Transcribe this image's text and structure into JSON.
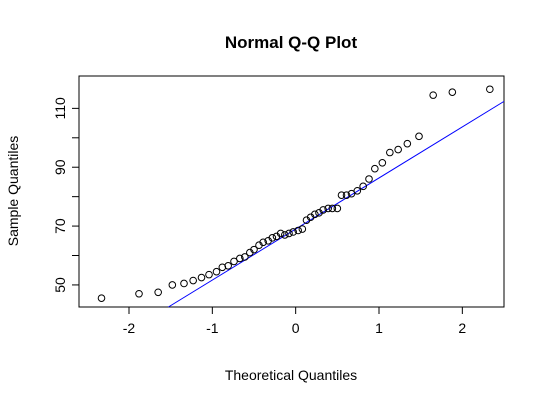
{
  "chart_data": {
    "type": "scatter",
    "title": "Normal Q-Q Plot",
    "xlabel": "Theoretical Quantiles",
    "ylabel": "Sample Quantiles",
    "xlim": [
      -2.6,
      2.5
    ],
    "ylim": [
      42.5,
      121
    ],
    "x_ticks": [
      -2,
      -1,
      0,
      1,
      2
    ],
    "x_tick_labels": [
      "-2",
      "-1",
      "0",
      "1",
      "2"
    ],
    "y_ticks": [
      50,
      60,
      70,
      80,
      90,
      100,
      110
    ],
    "y_tick_labels": [
      "50",
      "",
      "70",
      "",
      "90",
      "",
      "110"
    ],
    "grid": false,
    "point_color": "#000000",
    "line_color": "#0000ff",
    "reference_line": {
      "intercept": 69.0,
      "slope": 17.35
    },
    "points": [
      {
        "x": -2.33,
        "y": 45.5
      },
      {
        "x": -1.88,
        "y": 47.0
      },
      {
        "x": -1.65,
        "y": 47.5
      },
      {
        "x": -1.48,
        "y": 50.0
      },
      {
        "x": -1.34,
        "y": 50.5
      },
      {
        "x": -1.23,
        "y": 51.5
      },
      {
        "x": -1.13,
        "y": 52.5
      },
      {
        "x": -1.04,
        "y": 53.5
      },
      {
        "x": -0.95,
        "y": 54.5
      },
      {
        "x": -0.88,
        "y": 56.0
      },
      {
        "x": -0.81,
        "y": 56.5
      },
      {
        "x": -0.74,
        "y": 58.0
      },
      {
        "x": -0.67,
        "y": 59.0
      },
      {
        "x": -0.61,
        "y": 59.5
      },
      {
        "x": -0.55,
        "y": 61.0
      },
      {
        "x": -0.5,
        "y": 62.0
      },
      {
        "x": -0.44,
        "y": 63.5
      },
      {
        "x": -0.39,
        "y": 64.5
      },
      {
        "x": -0.33,
        "y": 65.0
      },
      {
        "x": -0.28,
        "y": 66.0
      },
      {
        "x": -0.23,
        "y": 66.5
      },
      {
        "x": -0.18,
        "y": 67.5
      },
      {
        "x": -0.13,
        "y": 67.0
      },
      {
        "x": -0.08,
        "y": 67.5
      },
      {
        "x": -0.03,
        "y": 68.0
      },
      {
        "x": 0.03,
        "y": 68.5
      },
      {
        "x": 0.08,
        "y": 69.0
      },
      {
        "x": 0.13,
        "y": 72.0
      },
      {
        "x": 0.18,
        "y": 73.0
      },
      {
        "x": 0.23,
        "y": 74.0
      },
      {
        "x": 0.28,
        "y": 74.5
      },
      {
        "x": 0.33,
        "y": 75.5
      },
      {
        "x": 0.39,
        "y": 76.0
      },
      {
        "x": 0.44,
        "y": 76.0
      },
      {
        "x": 0.5,
        "y": 76.0
      },
      {
        "x": 0.55,
        "y": 80.5
      },
      {
        "x": 0.61,
        "y": 80.5
      },
      {
        "x": 0.67,
        "y": 81.0
      },
      {
        "x": 0.74,
        "y": 82.0
      },
      {
        "x": 0.81,
        "y": 83.5
      },
      {
        "x": 0.88,
        "y": 86.0
      },
      {
        "x": 0.95,
        "y": 89.5
      },
      {
        "x": 1.04,
        "y": 91.5
      },
      {
        "x": 1.13,
        "y": 95.0
      },
      {
        "x": 1.23,
        "y": 96.0
      },
      {
        "x": 1.34,
        "y": 98.0
      },
      {
        "x": 1.48,
        "y": 100.5
      },
      {
        "x": 1.65,
        "y": 114.5
      },
      {
        "x": 1.88,
        "y": 115.5
      },
      {
        "x": 2.33,
        "y": 116.5
      }
    ]
  }
}
